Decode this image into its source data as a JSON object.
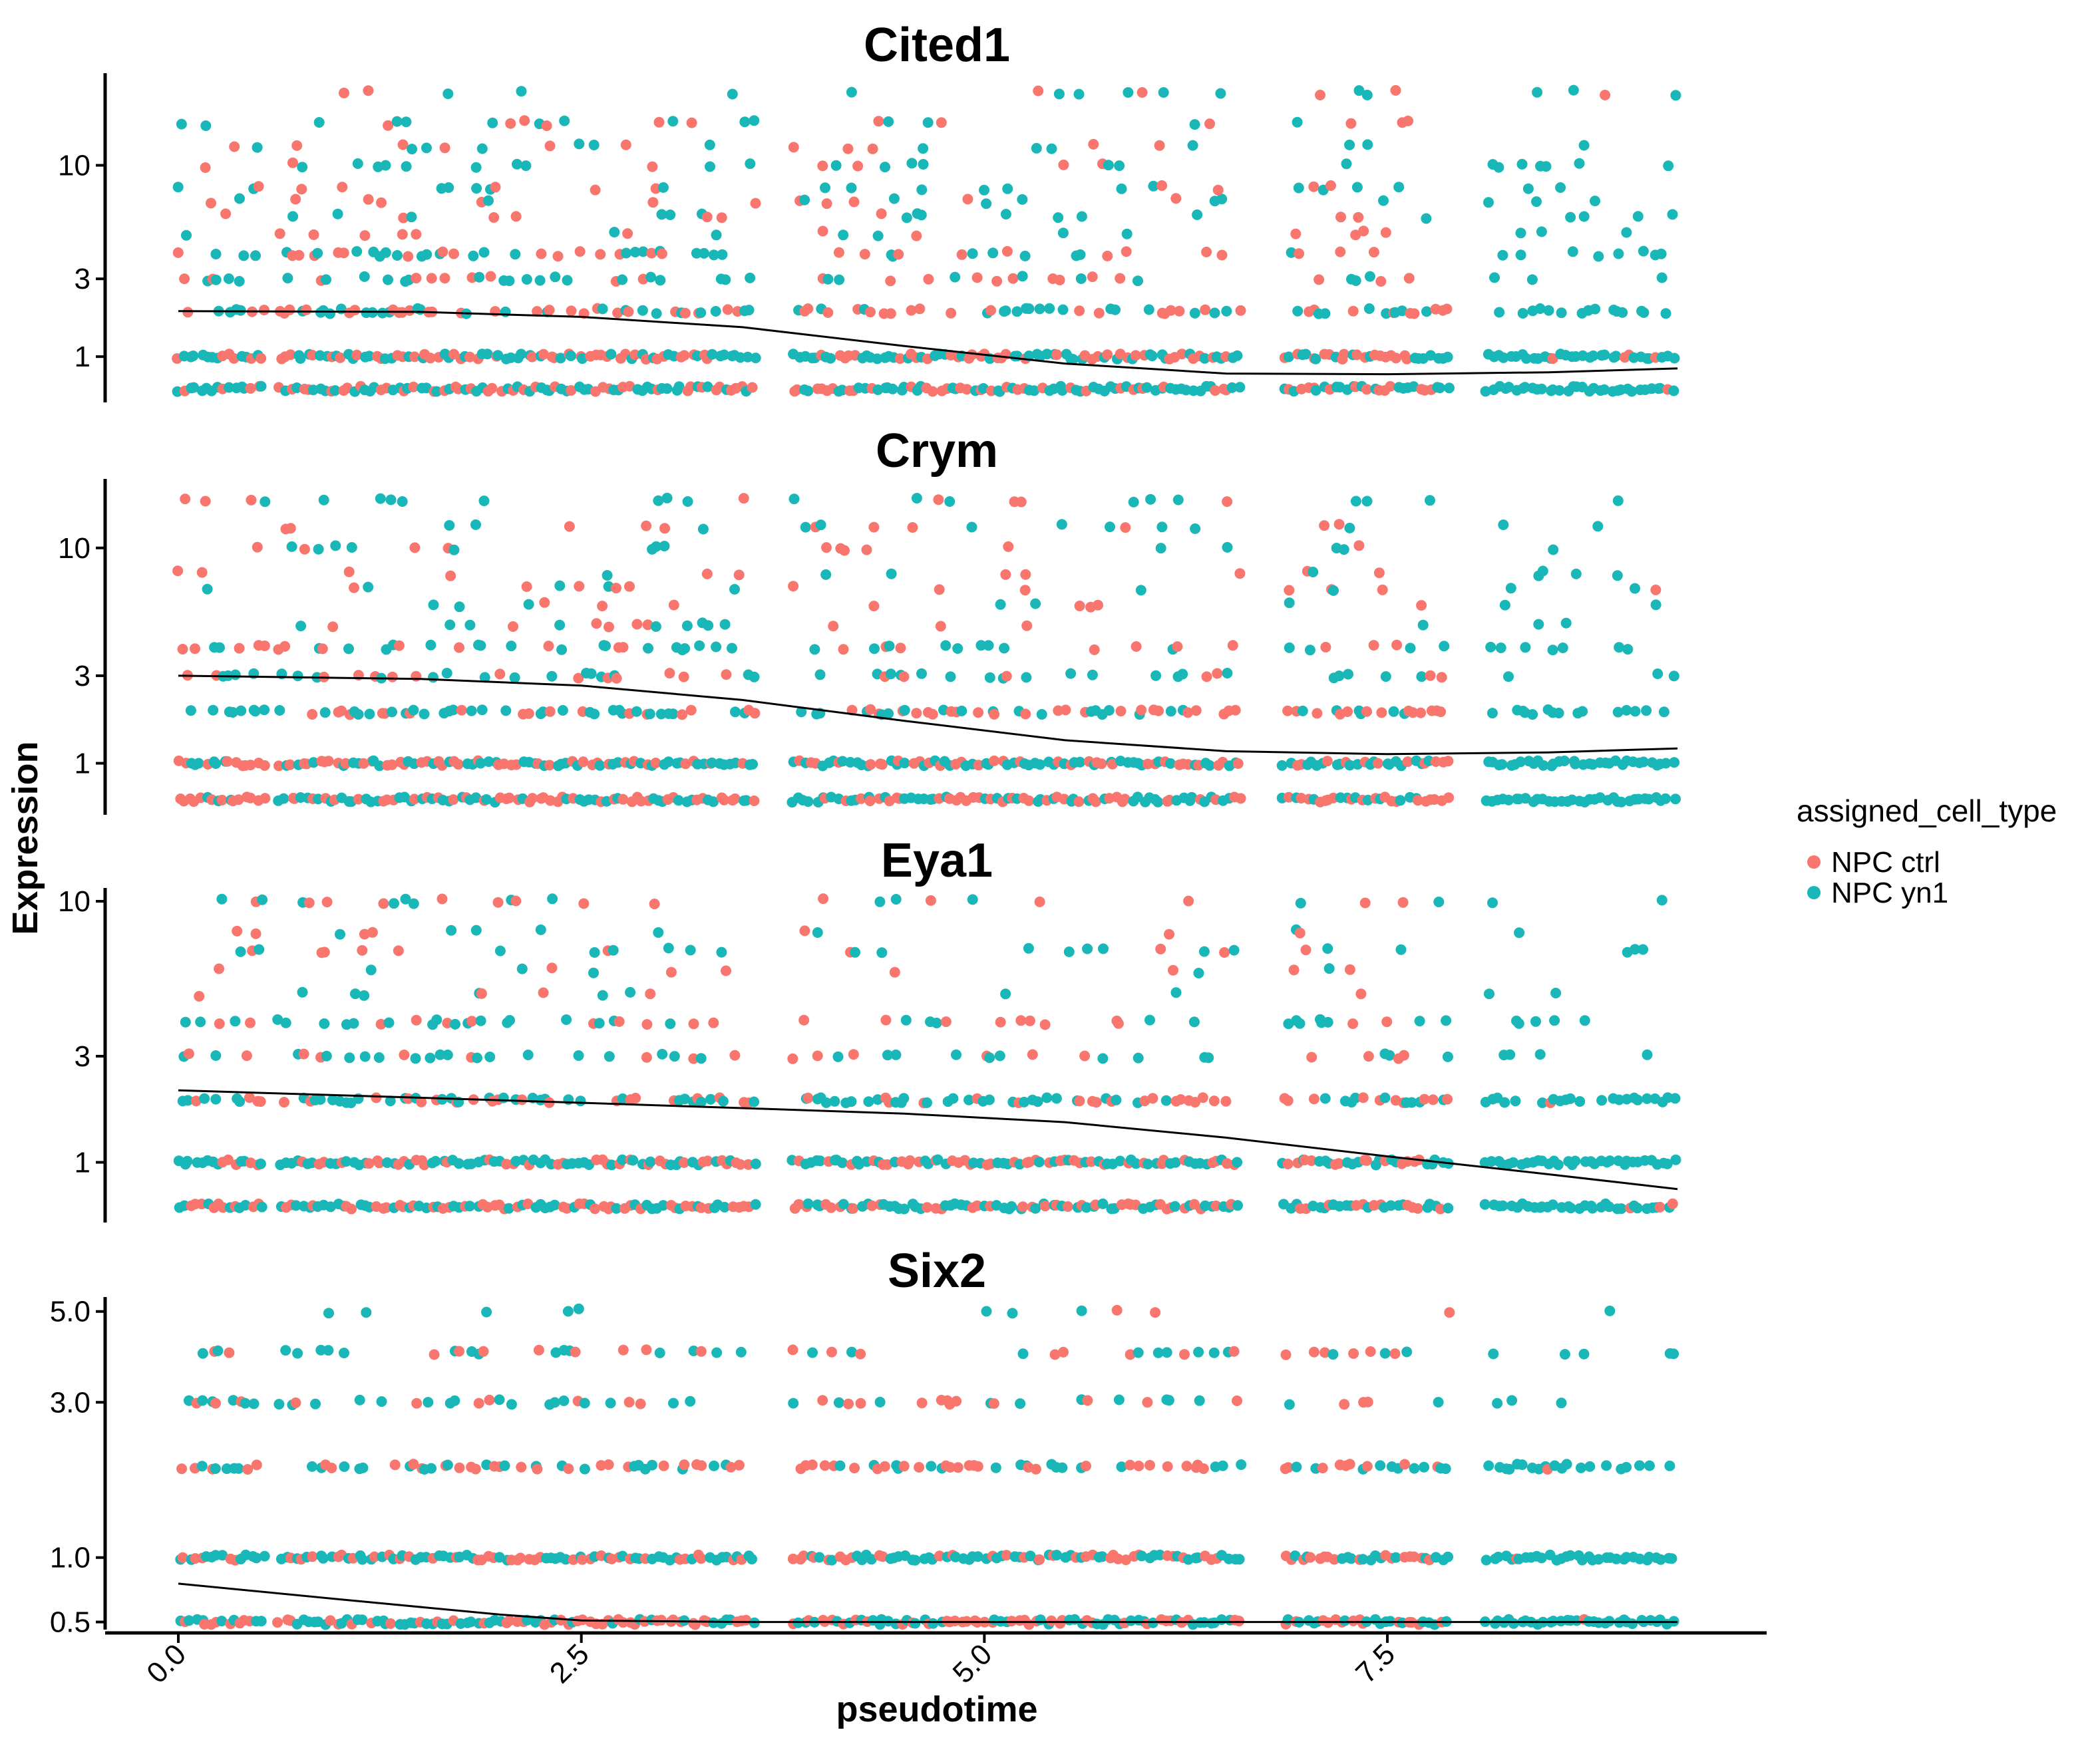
{
  "colors": {
    "npc_ctrl": "#F8766D",
    "npc_yn1": "#19B7B8",
    "trend": "#000000",
    "axis": "#000000"
  },
  "legend": {
    "title": "assigned_cell_type",
    "items": [
      {
        "label": "NPC ctrl",
        "color": "#F8766D"
      },
      {
        "label": "NPC yn1",
        "color": "#19B7B8"
      }
    ],
    "placement": "right"
  },
  "axes": {
    "xlabel": "pseudotime",
    "ylabel": "Expression"
  },
  "chart_data": {
    "type": "scatter",
    "facet": "vertical",
    "xlabel": "pseudotime",
    "ylabel": "Expression",
    "x_ticks": [
      "0.0",
      "2.5",
      "5.0",
      "7.5"
    ],
    "x_tick_values": [
      0,
      2.5,
      5,
      7.5
    ],
    "xlim": [
      -0.45,
      9.8
    ],
    "y_scale": "log10(y+1)",
    "grid": false,
    "series_names": [
      "NPC ctrl",
      "NPC yn1"
    ],
    "panels": [
      {
        "title": "Cited1",
        "y_ticks": [
          "1",
          "3",
          "10"
        ],
        "y_tick_values": [
          1,
          3,
          10
        ],
        "expression_levels": [
          0.5,
          1,
          2,
          3,
          4,
          5,
          6,
          7,
          8,
          10,
          12,
          15,
          20
        ],
        "ylim": [
          0.33,
          24
        ],
        "max_expression": 22,
        "trend": [
          [
            0,
            2.0
          ],
          [
            1.5,
            1.98
          ],
          [
            2.5,
            1.85
          ],
          [
            3.5,
            1.6
          ],
          [
            4.5,
            1.2
          ],
          [
            5.5,
            0.88
          ],
          [
            6.5,
            0.72
          ],
          [
            7.5,
            0.71
          ],
          [
            8.5,
            0.74
          ],
          [
            9.3,
            0.8
          ]
        ]
      },
      {
        "title": "Crym",
        "y_ticks": [
          "1",
          "3",
          "10"
        ],
        "y_tick_values": [
          1,
          3,
          10
        ],
        "expression_levels": [
          0.5,
          1,
          2,
          3,
          4,
          5,
          6,
          7,
          8,
          10,
          12,
          15
        ],
        "ylim": [
          0.33,
          18
        ],
        "max_expression": 16,
        "trend": [
          [
            0,
            3.0
          ],
          [
            1.5,
            2.9
          ],
          [
            2.5,
            2.7
          ],
          [
            3.5,
            2.3
          ],
          [
            4.5,
            1.8
          ],
          [
            5.5,
            1.4
          ],
          [
            6.5,
            1.2
          ],
          [
            7.5,
            1.15
          ],
          [
            8.5,
            1.18
          ],
          [
            9.3,
            1.25
          ]
        ]
      },
      {
        "title": "Eya1",
        "y_ticks": [
          "1",
          "3",
          "10"
        ],
        "y_tick_values": [
          1,
          3,
          10
        ],
        "expression_levels": [
          0.5,
          1,
          2,
          3,
          4,
          5,
          6,
          7,
          8,
          10
        ],
        "ylim": [
          0.35,
          11
        ],
        "max_expression": 10,
        "trend": [
          [
            0,
            2.2
          ],
          [
            1.5,
            2.05
          ],
          [
            2.5,
            1.95
          ],
          [
            3.5,
            1.85
          ],
          [
            4.5,
            1.75
          ],
          [
            5.5,
            1.6
          ],
          [
            6.5,
            1.35
          ],
          [
            7.5,
            1.08
          ],
          [
            8.5,
            0.85
          ],
          [
            9.3,
            0.68
          ]
        ]
      },
      {
        "title": "Six2",
        "y_ticks": [
          "0.5",
          "1.0",
          "3.0",
          "5.0"
        ],
        "y_tick_values": [
          0.5,
          1.0,
          3.0,
          5.0
        ],
        "expression_levels": [
          0.5,
          1,
          2,
          3,
          4,
          5
        ],
        "ylim": [
          0.45,
          5.4
        ],
        "max_expression": 5,
        "trend": [
          [
            0,
            0.78
          ],
          [
            1,
            0.66
          ],
          [
            2,
            0.55
          ],
          [
            2.5,
            0.51
          ],
          [
            3.5,
            0.5
          ],
          [
            5,
            0.5
          ],
          [
            7.5,
            0.5
          ],
          [
            9.3,
            0.5
          ]
        ]
      }
    ]
  }
}
